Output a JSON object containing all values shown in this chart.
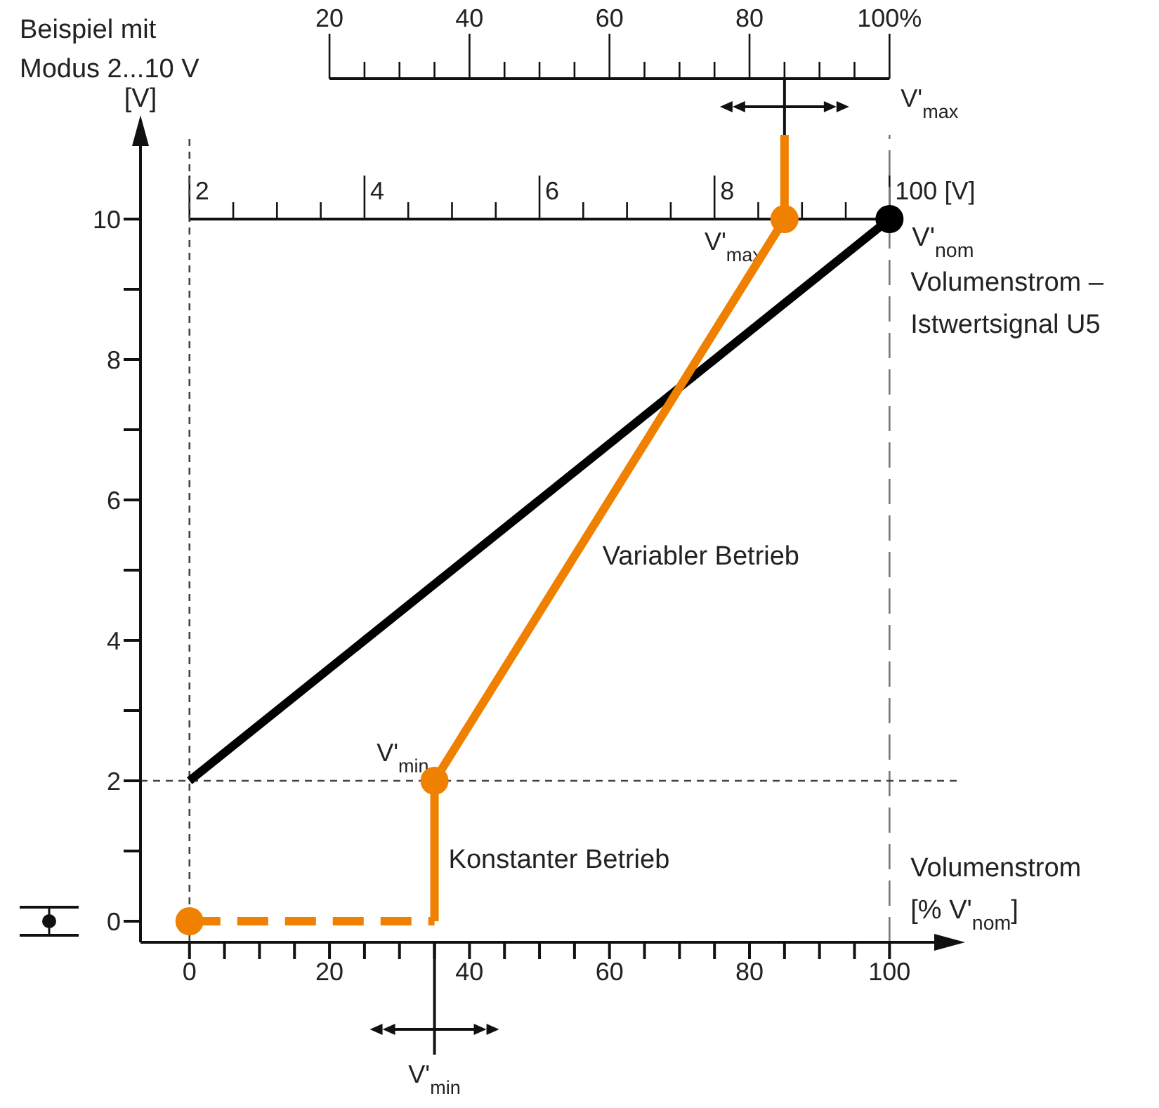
{
  "chart_data": {
    "type": "line",
    "title": "Beispiel mit Modus 2...10 V",
    "xlabel": "Volumenstrom [% V'$_{nom}$]",
    "ylabel": "[V]",
    "xlim": [
      -7,
      110
    ],
    "ylim": [
      -0.3,
      11.2
    ],
    "xticks": [
      0,
      {
        "value": 5,
        "label": null
      },
      {
        "value": 10,
        "label": null
      },
      {
        "value": 15,
        "label": null
      },
      20,
      {
        "value": 25,
        "label": null
      },
      {
        "value": 30,
        "label": null
      },
      {
        "value": 35,
        "label": null
      },
      40,
      {
        "value": 45,
        "label": null
      },
      {
        "value": 50,
        "label": null
      },
      {
        "value": 55,
        "label": null
      },
      60,
      {
        "value": 65,
        "label": null
      },
      {
        "value": 70,
        "label": null
      },
      {
        "value": 75,
        "label": null
      },
      80,
      {
        "value": 85,
        "label": null
      },
      {
        "value": 90,
        "label": null
      },
      {
        "value": 95,
        "label": null
      },
      100
    ],
    "yticks": [
      0,
      {
        "value": 1,
        "label": null
      },
      2,
      {
        "value": 3,
        "label": null
      },
      4,
      {
        "value": 5,
        "label": null
      },
      6,
      {
        "value": 7,
        "label": null
      },
      8,
      {
        "value": 9,
        "label": null
      },
      10
    ],
    "x2lim": [
      20,
      100
    ],
    "x2label": "V'$_{max}$",
    "x2ticks": [
      20,
      {
        "value": 25,
        "label": null
      },
      {
        "value": 30,
        "label": null
      },
      {
        "value": 35,
        "label": null
      },
      40,
      {
        "value": 45,
        "label": null
      },
      {
        "value": 50,
        "label": null
      },
      {
        "value": 55,
        "label": null
      },
      60,
      {
        "value": 65,
        "label": null
      },
      {
        "value": 70,
        "label": null
      },
      {
        "value": 75,
        "label": null
      },
      80,
      {
        "value": 85,
        "label": null
      },
      {
        "value": 90,
        "label": null
      },
      {
        "value": 95,
        "label": null
      },
      {
        "value": 100,
        "label": "100%"
      }
    ],
    "series": [
      {
        "color": "#111111",
        "x": [
          0,
          100
        ],
        "values": [
          10,
          10
        ]
      },
      {
        "color": "#f08000",
        "x": [
          0,
          35
        ],
        "values": [
          0,
          0
        ],
        "line_style": "dashed"
      },
      {
        "color": "#000000",
        "x": [
          0,
          100
        ],
        "values": [
          2,
          10
        ]
      },
      {
        "color": "#f08000",
        "x": [
          35,
          35
        ],
        "values": [
          0,
          2
        ]
      },
      {
        "color": "#f08000",
        "x": [
          35,
          85,
          85
        ],
        "values": [
          2,
          10,
          11.2
        ]
      },
      {
        "type": "scatter",
        "color": "#f08000",
        "marker": "circle",
        "x": [
          0,
          35,
          85
        ],
        "values": [
          0,
          2,
          10
        ]
      },
      {
        "type": "scatter",
        "name": "V'$_{nom}$",
        "color": "#000000",
        "marker": "circle",
        "x": [
          100
        ],
        "values": [
          10
        ]
      }
    ],
    "ref_lines": [
      {
        "axis": "x",
        "value": 0,
        "color": "#444444",
        "line_style": "dashed"
      },
      {
        "axis": "x",
        "value": 100,
        "color": "#777777",
        "line_style": "dashed"
      },
      {
        "axis": "y",
        "value": 2,
        "color": "#444444",
        "line_style": "dashed"
      }
    ],
    "annotations": [
      {
        "text": "2",
        "x": 0,
        "y": 10
      },
      {
        "text": "4",
        "x": 25,
        "y": 10
      },
      {
        "text": "6",
        "x": 50,
        "y": 10
      },
      {
        "text": "8",
        "x": 75,
        "y": 10
      },
      {
        "text": "100 [V]",
        "x": 100,
        "y": 10
      },
      {
        "text": "V'$_{min}$",
        "x": 35,
        "y": 2
      },
      {
        "text": "V'$_{max}$",
        "x": 85,
        "y": 10
      },
      "V'$_{min}$",
      {
        "text": "Volumenstrom – Istwertsignal U5",
        "x": 100,
        "y": 9.1
      },
      {
        "text": "Konstanter Betrieb",
        "x": 35,
        "y": 1.2
      },
      {
        "text": "Variabler Betrieb",
        "x": 57,
        "y": 5.52
      }
    ],
    "grid": false,
    "legend": false
  }
}
